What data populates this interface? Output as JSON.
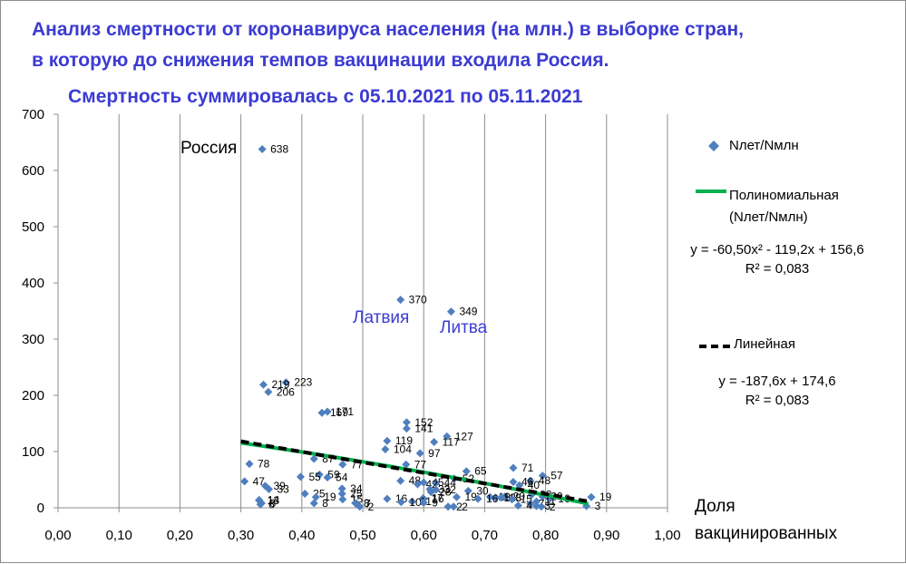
{
  "colors": {
    "title": "#3b3bd2",
    "marker": "#4f7fbf",
    "poly_trend": "#00b050",
    "linear_trend": "#000000",
    "grid": "#8c8c8c"
  },
  "chart_data": {
    "type": "scatter",
    "title_line1": "Анализ смертности от коронавируса населения (на млн.) в выборке стран,",
    "title_line2": "в которую до снижения темпов вакцинации входила Россия.",
    "subtitle": "Смертность суммировалась с 05.10.2021  по 05.11.2021",
    "xlabel_line1": "Доля",
    "xlabel_line2": "вакцинированных",
    "xlim": [
      0,
      1
    ],
    "ylim": [
      0,
      700
    ],
    "x_ticks": [
      "0,00",
      "0,10",
      "0,20",
      "0,30",
      "0,40",
      "0,50",
      "0,60",
      "0,70",
      "0,80",
      "0,90",
      "1,00"
    ],
    "y_ticks": [
      "0",
      "100",
      "200",
      "300",
      "400",
      "500",
      "600",
      "700"
    ],
    "grid": "vertical",
    "series": [
      {
        "name": "Nлет/Nмлн",
        "points": [
          {
            "x": 0.335,
            "y": 638,
            "label": "638"
          },
          {
            "x": 0.562,
            "y": 370,
            "label": "370"
          },
          {
            "x": 0.645,
            "y": 349,
            "label": "349"
          },
          {
            "x": 0.374,
            "y": 223,
            "label": "223"
          },
          {
            "x": 0.337,
            "y": 219,
            "label": "219"
          },
          {
            "x": 0.345,
            "y": 206,
            "label": "206"
          },
          {
            "x": 0.433,
            "y": 169,
            "label": "169"
          },
          {
            "x": 0.442,
            "y": 171,
            "label": "171"
          },
          {
            "x": 0.572,
            "y": 152,
            "label": "152"
          },
          {
            "x": 0.572,
            "y": 141,
            "label": "141"
          },
          {
            "x": 0.638,
            "y": 127,
            "label": "127"
          },
          {
            "x": 0.54,
            "y": 119,
            "label": "119"
          },
          {
            "x": 0.617,
            "y": 117,
            "label": "117"
          },
          {
            "x": 0.537,
            "y": 104,
            "label": "104"
          },
          {
            "x": 0.594,
            "y": 97,
            "label": "97"
          },
          {
            "x": 0.42,
            "y": 87,
            "label": "87"
          },
          {
            "x": 0.314,
            "y": 78,
            "label": "78"
          },
          {
            "x": 0.467,
            "y": 77,
            "label": "77"
          },
          {
            "x": 0.571,
            "y": 77,
            "label": "77"
          },
          {
            "x": 0.747,
            "y": 71,
            "label": "71"
          },
          {
            "x": 0.67,
            "y": 65,
            "label": "65"
          },
          {
            "x": 0.429,
            "y": 59,
            "label": "59"
          },
          {
            "x": 0.795,
            "y": 57,
            "label": "57"
          },
          {
            "x": 0.398,
            "y": 55,
            "label": "55"
          },
          {
            "x": 0.442,
            "y": 54,
            "label": "54"
          },
          {
            "x": 0.65,
            "y": 52,
            "label": "52"
          },
          {
            "x": 0.775,
            "y": 48,
            "label": "48"
          },
          {
            "x": 0.306,
            "y": 47,
            "label": "47"
          },
          {
            "x": 0.562,
            "y": 48,
            "label": "48"
          },
          {
            "x": 0.747,
            "y": 46,
            "label": "46"
          },
          {
            "x": 0.6,
            "y": 45,
            "label": "45"
          },
          {
            "x": 0.62,
            "y": 44,
            "label": "44"
          },
          {
            "x": 0.59,
            "y": 42,
            "label": "42"
          },
          {
            "x": 0.757,
            "y": 40,
            "label": "40"
          },
          {
            "x": 0.34,
            "y": 39,
            "label": "39"
          },
          {
            "x": 0.61,
            "y": 33,
            "label": "33"
          },
          {
            "x": 0.346,
            "y": 33,
            "label": "33"
          },
          {
            "x": 0.466,
            "y": 34,
            "label": "34"
          },
          {
            "x": 0.62,
            "y": 32,
            "label": "32"
          },
          {
            "x": 0.673,
            "y": 30,
            "label": "30"
          },
          {
            "x": 0.612,
            "y": 28,
            "label": "28"
          },
          {
            "x": 0.405,
            "y": 25,
            "label": "25"
          },
          {
            "x": 0.466,
            "y": 25,
            "label": "25"
          },
          {
            "x": 0.777,
            "y": 23,
            "label": "23"
          },
          {
            "x": 0.733,
            "y": 20,
            "label": "20"
          },
          {
            "x": 0.795,
            "y": 20,
            "label": "20"
          },
          {
            "x": 0.423,
            "y": 19,
            "label": "19"
          },
          {
            "x": 0.654,
            "y": 19,
            "label": "19"
          },
          {
            "x": 0.709,
            "y": 19,
            "label": "19"
          },
          {
            "x": 0.875,
            "y": 19,
            "label": "19"
          },
          {
            "x": 0.718,
            "y": 18,
            "label": "18"
          },
          {
            "x": 0.727,
            "y": 18,
            "label": "18"
          },
          {
            "x": 0.599,
            "y": 17,
            "label": "17"
          },
          {
            "x": 0.54,
            "y": 16,
            "label": "16"
          },
          {
            "x": 0.689,
            "y": 16,
            "label": "16"
          },
          {
            "x": 0.6,
            "y": 16,
            "label": "16"
          },
          {
            "x": 0.807,
            "y": 16,
            "label": "16"
          },
          {
            "x": 0.33,
            "y": 14,
            "label": "14"
          },
          {
            "x": 0.467,
            "y": 15,
            "label": "15"
          },
          {
            "x": 0.745,
            "y": 15,
            "label": "15"
          },
          {
            "x": 0.33,
            "y": 13,
            "label": "13"
          },
          {
            "x": 0.581,
            "y": 11,
            "label": "11"
          },
          {
            "x": 0.785,
            "y": 11,
            "label": "11"
          },
          {
            "x": 0.563,
            "y": 10,
            "label": "10"
          },
          {
            "x": 0.49,
            "y": 7,
            "label": "7"
          },
          {
            "x": 0.775,
            "y": 7,
            "label": "7"
          },
          {
            "x": 0.488,
            "y": 8,
            "label": "8"
          },
          {
            "x": 0.42,
            "y": 8,
            "label": "8"
          },
          {
            "x": 0.332,
            "y": 6,
            "label": "6"
          },
          {
            "x": 0.334,
            "y": 8,
            "label": "8"
          },
          {
            "x": 0.6,
            "y": 9,
            "label": "9"
          },
          {
            "x": 0.495,
            "y": 2,
            "label": "2"
          },
          {
            "x": 0.64,
            "y": 2,
            "label": "2"
          },
          {
            "x": 0.649,
            "y": 2,
            "label": "2"
          },
          {
            "x": 0.793,
            "y": 2,
            "label": "2"
          },
          {
            "x": 0.867,
            "y": 3,
            "label": "3"
          },
          {
            "x": 0.755,
            "y": 4,
            "label": "4"
          },
          {
            "x": 0.785,
            "y": 3,
            "label": "3"
          }
        ]
      }
    ],
    "trendlines": [
      {
        "name": "Полиномиальная (Nлет/Nмлн)",
        "type": "polynomial",
        "coefficients": {
          "a2": -60.5,
          "a1": -119.2,
          "a0": 156.6
        },
        "equation": "y = -60,50x² - 119,2x + 156,6",
        "r2": "R² = 0,083",
        "x_range": [
          0.3,
          0.87
        ]
      },
      {
        "name": "Линейная",
        "type": "linear",
        "coefficients": {
          "a1": -187.6,
          "a0": 174.6
        },
        "equation": "y = -187,6x + 174,6",
        "r2": "R² = 0,083",
        "x_range": [
          0.3,
          0.87
        ]
      }
    ],
    "annotations": {
      "russia": "Россия",
      "latvia": "Латвия",
      "lithuania": "Литва"
    }
  }
}
